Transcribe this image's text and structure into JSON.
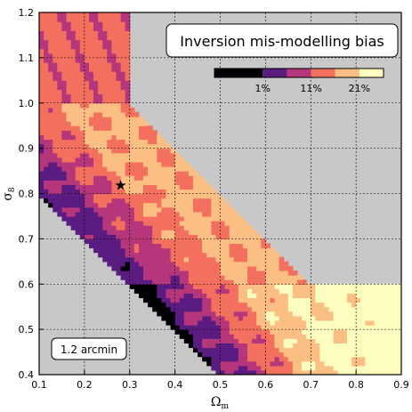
{
  "chart_data": {
    "type": "heatmap",
    "title": "Inversion mis-modelling bias",
    "annotation": "1.2 arcmin",
    "xlabel": "Ω",
    "xlabel_sub": "m",
    "ylabel": "σ",
    "ylabel_sub": "8",
    "xlim": [
      0.1,
      0.9
    ],
    "ylim": [
      0.4,
      1.2
    ],
    "x_ticks": [
      "0.1",
      "0.2",
      "0.3",
      "0.4",
      "0.5",
      "0.6",
      "0.7",
      "0.8",
      "0.9"
    ],
    "y_ticks": [
      "0.4",
      "0.5",
      "0.6",
      "0.7",
      "0.8",
      "0.9",
      "1.0",
      "1.1",
      "1.2"
    ],
    "grid": true,
    "background_color": "#c8c8c8",
    "colorbar": {
      "levels_percent": [
        -9,
        1,
        6,
        11,
        16,
        21,
        26
      ],
      "tick_labels": [
        "1%",
        "11%",
        "21%"
      ],
      "colors": [
        "#000004",
        "#5b1c82",
        "#b5367a",
        "#f3705f",
        "#fbbf84",
        "#fcfdbf"
      ]
    },
    "fiducial_marker": {
      "label": "★",
      "x": 0.28,
      "y": 0.82
    },
    "region_description_levels": {
      "top_left_strip": "11-16%",
      "diagonal_band_center": "16-21%",
      "lower_right_corner": "21-26%",
      "lower_left_diagonal_edge": "1-11% / below 1%"
    }
  }
}
